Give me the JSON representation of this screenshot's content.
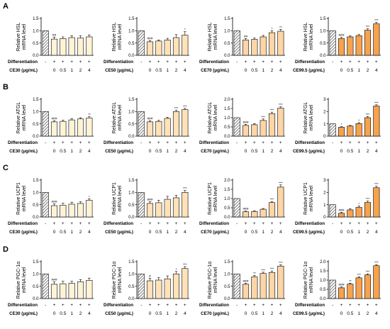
{
  "colors": {
    "ce30": "#FFF3D6",
    "ce50": "#FFE2B8",
    "ce70": "#FDD5A6",
    "ce99": "#F6A24E",
    "axis": "#000000",
    "hatch": "#555555"
  },
  "row_labels": [
    "A",
    "B",
    "C",
    "D"
  ],
  "row_chart_types": [
    "bar",
    "bar",
    "bar",
    "bar"
  ],
  "x_rows": {
    "differentiation_label": "Differentiation",
    "differentiation_signs": [
      "-",
      "+",
      "+",
      "+",
      "+",
      "+"
    ],
    "dose_values": [
      "",
      "0",
      "0.5",
      "1",
      "2",
      "4"
    ]
  },
  "extract_labels": [
    "CE30 (μg/mL)",
    "CE50 (μg/mL)",
    "CE70 (μg/mL)",
    "CE99.5 (μg/mL)"
  ],
  "chart_data": [
    {
      "type": "bar",
      "ylabel": [
        "Relative HSL",
        "mRNA level"
      ],
      "ylim": [
        0,
        1.5
      ],
      "yticks": [
        "0.0",
        "0.5",
        "1.0",
        "1.5"
      ],
      "extract": "CE30 (μg/mL)",
      "values": [
        1.0,
        0.66,
        0.68,
        0.72,
        0.7,
        0.75
      ],
      "errors": [
        0,
        0.08,
        0.07,
        0.08,
        0.09,
        0.08
      ],
      "sig": [
        "",
        "##",
        "",
        "",
        "",
        ""
      ]
    },
    {
      "type": "bar",
      "ylabel": [
        "Relative HSL",
        "mRNA level"
      ],
      "ylim": [
        0,
        1.5
      ],
      "yticks": [
        "0.0",
        "0.5",
        "1.0",
        "1.5"
      ],
      "extract": "CE50 (μg/mL)",
      "values": [
        1.0,
        0.55,
        0.58,
        0.62,
        0.72,
        0.82
      ],
      "errors": [
        0,
        0.05,
        0.04,
        0.07,
        0.12,
        0.14
      ],
      "sig": [
        "",
        "###",
        "",
        "",
        "",
        "*"
      ]
    },
    {
      "type": "bar",
      "ylabel": [
        "Relative HSL",
        "mRNA level"
      ],
      "ylim": [
        0,
        1.5
      ],
      "yticks": [
        "0.0",
        "0.5",
        "1.0",
        "1.5"
      ],
      "extract": "CE70 (μg/mL)",
      "values": [
        1.0,
        0.62,
        0.65,
        0.75,
        0.92,
        0.98
      ],
      "errors": [
        0,
        0.06,
        0.05,
        0.06,
        0.08,
        0.08
      ],
      "sig": [
        "",
        "##",
        "",
        "",
        "*",
        "**"
      ]
    },
    {
      "type": "bar",
      "ylabel": [
        "Relative HSL",
        "mRNA level"
      ],
      "ylim": [
        0,
        1.5
      ],
      "yticks": [
        "0.0",
        "0.5",
        "1.0",
        "1.5"
      ],
      "extract": "CE99.5 (μg/mL)",
      "values": [
        1.0,
        0.68,
        0.75,
        0.8,
        1.02,
        1.28
      ],
      "errors": [
        0,
        0.05,
        0.04,
        0.05,
        0.06,
        0.06
      ],
      "sig": [
        "",
        "###",
        "",
        "",
        "***",
        "***"
      ]
    },
    {
      "type": "bar",
      "ylabel": [
        "Relative ATGL",
        "mRNA level"
      ],
      "ylim": [
        0,
        1.5
      ],
      "yticks": [
        "0.0",
        "0.5",
        "1.0",
        "1.5"
      ],
      "extract": "CE30 (μg/mL)",
      "values": [
        1.0,
        0.58,
        0.6,
        0.66,
        0.7,
        0.74
      ],
      "errors": [
        0,
        0.05,
        0.05,
        0.05,
        0.05,
        0.05
      ],
      "sig": [
        "",
        "###",
        "",
        "",
        "",
        "**"
      ]
    },
    {
      "type": "bar",
      "ylabel": [
        "Relative ATGL",
        "mRNA level"
      ],
      "ylim": [
        0,
        1.5
      ],
      "yticks": [
        "0.0",
        "0.5",
        "1.0",
        "1.5"
      ],
      "extract": "CE50 (μg/mL)",
      "values": [
        1.0,
        0.58,
        0.6,
        0.72,
        1.0,
        1.08
      ],
      "errors": [
        0,
        0.05,
        0.04,
        0.05,
        0.06,
        0.05
      ],
      "sig": [
        "",
        "###",
        "",
        "",
        "***",
        "***"
      ]
    },
    {
      "type": "bar",
      "ylabel": [
        "Relative ATGL",
        "mRNA level"
      ],
      "ylim": [
        0,
        2.0
      ],
      "yticks": [
        "0.0",
        "0.5",
        "1.0",
        "1.5",
        "2.0"
      ],
      "extract": "CE70 (μg/mL)",
      "values": [
        1.0,
        0.58,
        0.62,
        0.85,
        1.22,
        1.52
      ],
      "errors": [
        0,
        0.06,
        0.06,
        0.08,
        0.08,
        0.07
      ],
      "sig": [
        "",
        "###",
        "",
        "***",
        "***",
        "***"
      ]
    },
    {
      "type": "bar",
      "ylabel": [
        "Relative ATGL",
        "mRNA level"
      ],
      "ylim": [
        0,
        3.0
      ],
      "yticks": [
        "0",
        "1",
        "2",
        "3"
      ],
      "extract": "CE99.5 (μg/mL)",
      "values": [
        1.0,
        0.72,
        0.82,
        1.02,
        1.5,
        2.45
      ],
      "errors": [
        0,
        0.05,
        0.05,
        0.08,
        0.1,
        0.1
      ],
      "sig": [
        "",
        "*",
        "",
        "*",
        "***",
        "***"
      ]
    },
    {
      "type": "bar",
      "ylabel": [
        "Relative UCP1",
        "mRNA level"
      ],
      "ylim": [
        0,
        1.5
      ],
      "yticks": [
        "0.0",
        "0.5",
        "1.0",
        "1.5"
      ],
      "extract": "CE30 (μg/mL)",
      "values": [
        1.0,
        0.46,
        0.48,
        0.52,
        0.55,
        0.68
      ],
      "errors": [
        0,
        0.08,
        0.08,
        0.08,
        0.07,
        0.06
      ],
      "sig": [
        "",
        "###",
        "",
        "",
        "",
        "*"
      ]
    },
    {
      "type": "bar",
      "ylabel": [
        "Relative UCP1",
        "mRNA level"
      ],
      "ylim": [
        0,
        1.5
      ],
      "yticks": [
        "0.0",
        "0.5",
        "1.0",
        "1.5"
      ],
      "extract": "CE50 (μg/mL)",
      "values": [
        1.0,
        0.55,
        0.58,
        0.72,
        0.78,
        1.0
      ],
      "errors": [
        0,
        0.07,
        0.1,
        0.12,
        0.1,
        0.08
      ],
      "sig": [
        "",
        "###",
        "",
        "",
        "",
        "***"
      ]
    },
    {
      "type": "bar",
      "ylabel": [
        "Relative UCP1",
        "mRNA level"
      ],
      "ylim": [
        0,
        2.0
      ],
      "yticks": [
        "0.0",
        "0.5",
        "1.0",
        "1.5",
        "2.0"
      ],
      "extract": "CE70 (μg/mL)",
      "values": [
        1.0,
        0.28,
        0.3,
        0.42,
        0.78,
        1.62
      ],
      "errors": [
        0,
        0.04,
        0.04,
        0.04,
        0.06,
        0.12
      ],
      "sig": [
        "",
        "###",
        "",
        "",
        "***",
        "***"
      ]
    },
    {
      "type": "bar",
      "ylabel": [
        "Relative UCP1",
        "mRNA level"
      ],
      "ylim": [
        0,
        3.0
      ],
      "yticks": [
        "0",
        "1",
        "2",
        "3"
      ],
      "extract": "CE99.5 (μg/mL)",
      "values": [
        1.0,
        0.3,
        0.58,
        0.78,
        1.18,
        2.38
      ],
      "errors": [
        0,
        0.08,
        0.1,
        0.12,
        0.12,
        0.12
      ],
      "sig": [
        "",
        "###",
        "",
        "*",
        "***",
        "***"
      ]
    },
    {
      "type": "bar",
      "ylabel": [
        "Relative PGC-1α",
        "mRNA level"
      ],
      "ylim": [
        0,
        1.5
      ],
      "yticks": [
        "0.0",
        "0.5",
        "1.0",
        "1.5"
      ],
      "extract": "CE30 (μg/mL)",
      "values": [
        1.0,
        0.58,
        0.6,
        0.62,
        0.68,
        0.74
      ],
      "errors": [
        0,
        0.1,
        0.1,
        0.08,
        0.09,
        0.09
      ],
      "sig": [
        "",
        "###",
        "",
        "",
        "",
        ""
      ]
    },
    {
      "type": "bar",
      "ylabel": [
        "Relative PGC-1α",
        "mRNA level"
      ],
      "ylim": [
        0,
        1.5
      ],
      "yticks": [
        "0.0",
        "0.5",
        "1.0",
        "1.5"
      ],
      "extract": "CE50 (μg/mL)",
      "values": [
        1.0,
        0.72,
        0.75,
        0.8,
        1.0,
        1.22
      ],
      "errors": [
        0,
        0.1,
        0.1,
        0.12,
        0.1,
        0.08
      ],
      "sig": [
        "",
        "#",
        "",
        "",
        "*",
        "***"
      ]
    },
    {
      "type": "bar",
      "ylabel": [
        "Relative PGC-1α",
        "mRNA level"
      ],
      "ylim": [
        0,
        1.5
      ],
      "yticks": [
        "0.0",
        "0.5",
        "1.0",
        "1.5"
      ],
      "extract": "CE70 (μg/mL)",
      "values": [
        1.0,
        0.58,
        0.88,
        1.02,
        1.06,
        1.32
      ],
      "errors": [
        0,
        0.04,
        0.06,
        0.05,
        0.06,
        0.05
      ],
      "sig": [
        "",
        "###",
        "**",
        "***",
        "***",
        "***"
      ]
    },
    {
      "type": "bar",
      "ylabel": [
        "Relative PGC-1α",
        "mRNA level"
      ],
      "ylim": [
        0,
        2.0
      ],
      "yticks": [
        "0.0",
        "0.5",
        "1.0",
        "1.5",
        "2.0"
      ],
      "extract": "CE99.5 (μg/mL)",
      "values": [
        1.0,
        0.58,
        0.78,
        1.12,
        1.28,
        1.78
      ],
      "errors": [
        0,
        0.05,
        0.05,
        0.06,
        0.06,
        0.06
      ],
      "sig": [
        "",
        "###",
        "**",
        "***",
        "***",
        "***"
      ]
    }
  ]
}
